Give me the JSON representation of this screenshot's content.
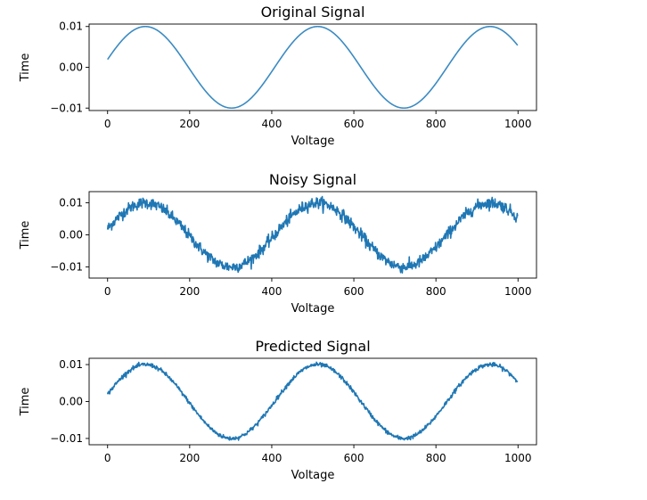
{
  "chart_data": [
    {
      "type": "line",
      "title": "Original Signal",
      "xlabel": "Voltage",
      "ylabel": "Time",
      "xlim": [
        -45,
        1045
      ],
      "ylim": [
        -0.0106,
        0.0106
      ],
      "xticks": [
        "0",
        "200",
        "400",
        "600",
        "800",
        "1000"
      ],
      "yticks": [
        "0.01",
        "0.00",
        "−0.01"
      ],
      "grid": false,
      "color": "#3b8bc2",
      "series": [
        {
          "x_start": 0,
          "x_end": 999,
          "amplitude": 0.01,
          "period": 420,
          "phase_x": -13,
          "noise": 0,
          "points": 1000
        }
      ]
    },
    {
      "type": "line",
      "title": "Noisy Signal",
      "xlabel": "Voltage",
      "ylabel": "Time",
      "xlim": [
        -45,
        1045
      ],
      "ylim": [
        -0.0135,
        0.0135
      ],
      "xticks": [
        "0",
        "200",
        "400",
        "600",
        "800",
        "1000"
      ],
      "yticks": [
        "0.01",
        "0.00",
        "−0.01"
      ],
      "grid": false,
      "color": "#1f77b4",
      "series": [
        {
          "x_start": 0,
          "x_end": 999,
          "amplitude": 0.01,
          "period": 420,
          "phase_x": -13,
          "noise": 0.0009,
          "points": 1000
        }
      ]
    },
    {
      "type": "line",
      "title": "Predicted Signal",
      "xlabel": "Voltage",
      "ylabel": "Time",
      "xlim": [
        -45,
        1045
      ],
      "ylim": [
        -0.0117,
        0.0117
      ],
      "xticks": [
        "0",
        "200",
        "400",
        "600",
        "800",
        "1000"
      ],
      "yticks": [
        "0.01",
        "0.00",
        "−0.01"
      ],
      "grid": false,
      "color": "#1f77b4",
      "series": [
        {
          "x_start": 0,
          "x_end": 999,
          "amplitude": 0.01,
          "period": 420,
          "phase_x": -13,
          "noise": 0.00028,
          "points": 1000
        }
      ]
    }
  ]
}
